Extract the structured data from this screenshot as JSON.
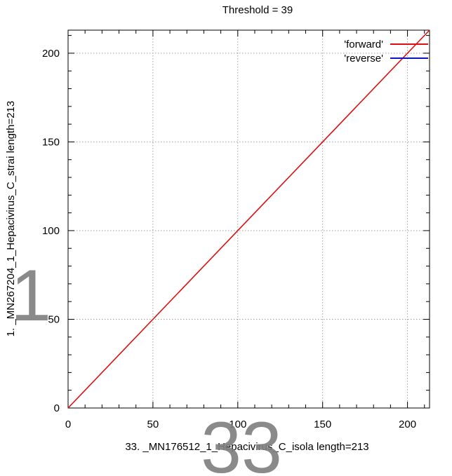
{
  "chart_data": {
    "type": "line",
    "title": "Threshold = 39",
    "xlabel": "33. _MN176512_1_Hepacivirus_C_isola length=213",
    "ylabel": "1. _MN267204_1_Hepacivirus_C_strai length=213",
    "xlim": [
      0,
      213
    ],
    "ylim": [
      0,
      213
    ],
    "xticks": [
      0,
      50,
      100,
      150,
      200
    ],
    "yticks": [
      0,
      50,
      100,
      150,
      200
    ],
    "grid": true,
    "legend_position": "top-right",
    "series": [
      {
        "name": "'forward'",
        "color": "#dd1111",
        "x": [
          0,
          213
        ],
        "y": [
          0,
          213
        ]
      },
      {
        "name": "'reverse'",
        "color": "#1111cc",
        "x": [],
        "y": []
      }
    ],
    "watermarks": {
      "left": "1",
      "bottom": "33"
    }
  }
}
